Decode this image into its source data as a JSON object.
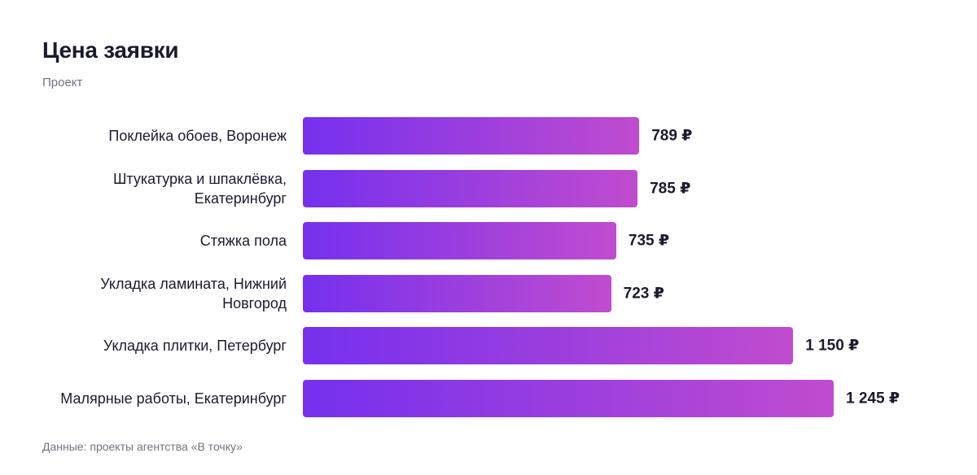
{
  "chart_data": {
    "type": "bar",
    "orientation": "horizontal",
    "title": "Цена заявки",
    "subtitle": "Проект",
    "source": "Данные: проекты агентства «В точку»",
    "categories": [
      "Поклейка обоев, Воронеж",
      "Штукатурка и шпаклёвка, Екатеринбург",
      "Стяжка пола",
      "Укладка ламината, Нижний Новгород",
      "Укладка плитки, Петербург",
      "Малярные работы, Екатеринбург"
    ],
    "values": [
      789,
      785,
      735,
      723,
      1150,
      1245
    ],
    "value_labels": [
      "789 ₽",
      "785 ₽",
      "735 ₽",
      "723 ₽",
      "1 150 ₽",
      "1 245 ₽"
    ],
    "gradient": [
      "#7530ee",
      "#c04ccf"
    ]
  }
}
